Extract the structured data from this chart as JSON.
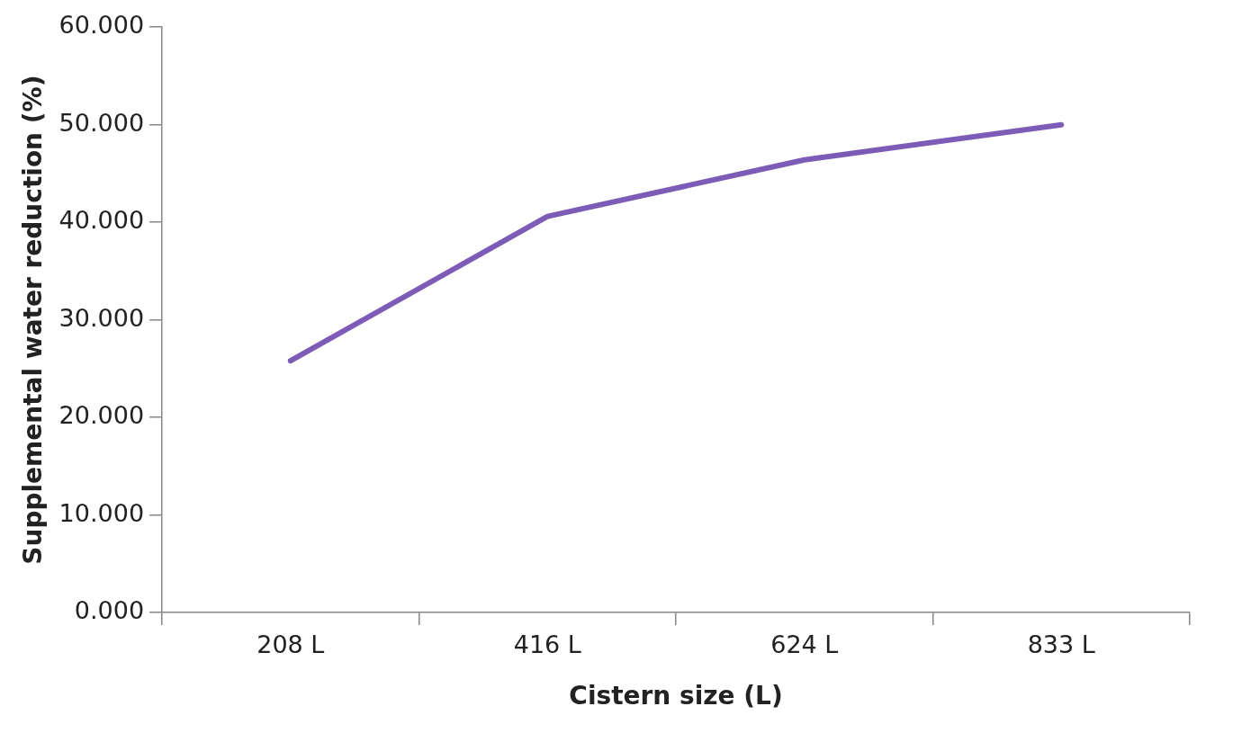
{
  "chart_data": {
    "type": "line",
    "xlabel": "Cistern size (L)",
    "ylabel": "Supplemental water reduction (%)",
    "categories": [
      "208 L",
      "416 L",
      "624 L",
      "833 L"
    ],
    "series": [
      {
        "color": "#7d5cb8",
        "values": [
          25.8,
          40.6,
          46.4,
          50.0
        ]
      }
    ],
    "ylim": [
      0,
      60
    ],
    "yticks": [
      {
        "value": 0,
        "label": "0.000"
      },
      {
        "value": 10,
        "label": "10.000"
      },
      {
        "value": 20,
        "label": "20.000"
      },
      {
        "value": 30,
        "label": "30.000"
      },
      {
        "value": 40,
        "label": "40.000"
      },
      {
        "value": 50,
        "label": "50.000"
      },
      {
        "value": 60,
        "label": "60.000"
      }
    ],
    "grid": false,
    "legend": false,
    "marker": "none",
    "line_style": "solid"
  }
}
